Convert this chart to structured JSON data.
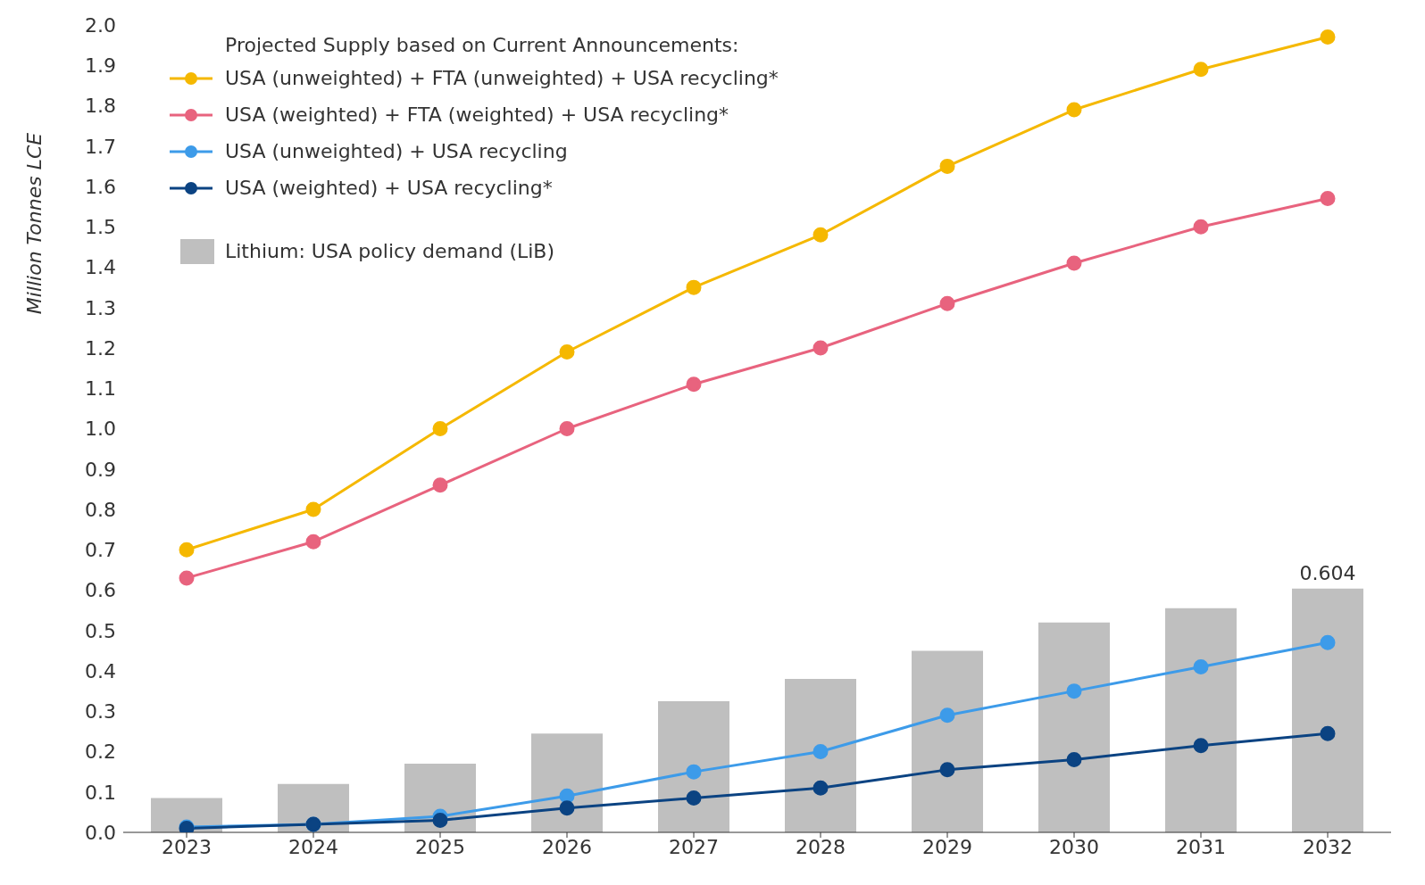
{
  "chart_data": {
    "type": "line",
    "ylabel": "Million Tonnes LCE",
    "legend_title": "Projected Supply based on Current Announcements:",
    "categories": [
      "2023",
      "2024",
      "2025",
      "2026",
      "2027",
      "2028",
      "2029",
      "2030",
      "2031",
      "2032"
    ],
    "series": [
      {
        "type": "bar",
        "name": "Lithium: USA policy demand (LiB)",
        "color": "#bfbfbf",
        "values": [
          0.085,
          0.12,
          0.17,
          0.245,
          0.325,
          0.38,
          0.45,
          0.52,
          0.555,
          0.604
        ],
        "value_labels": [
          null,
          null,
          null,
          null,
          null,
          null,
          null,
          null,
          null,
          "0.604"
        ]
      },
      {
        "name": "USA (unweighted) + FTA (unweighted) + USA recycling*",
        "color": "#f5b800",
        "values": [
          0.7,
          0.8,
          1.0,
          1.19,
          1.35,
          1.48,
          1.65,
          1.79,
          1.89,
          1.97
        ]
      },
      {
        "name": "USA (weighted) + FTA (weighted) + USA recycling*",
        "color": "#e8637e",
        "values": [
          0.63,
          0.72,
          0.86,
          1.0,
          1.11,
          1.2,
          1.31,
          1.41,
          1.5,
          1.57
        ]
      },
      {
        "name": "USA (unweighted) + USA recycling",
        "color": "#3d9be9",
        "values": [
          0.013,
          0.02,
          0.04,
          0.09,
          0.15,
          0.2,
          0.29,
          0.35,
          0.41,
          0.47
        ]
      },
      {
        "name": "USA (weighted) + USA recycling*",
        "color": "#0b4382",
        "values": [
          0.01,
          0.02,
          0.03,
          0.06,
          0.085,
          0.11,
          0.155,
          0.18,
          0.215,
          0.245
        ]
      }
    ],
    "ylim": [
      0,
      2.0
    ],
    "yticks": [
      {
        "value": 0,
        "label": "0.0"
      },
      {
        "value": 0.1,
        "label": "0.1"
      },
      {
        "value": 0.2,
        "label": "0.2"
      },
      {
        "value": 0.3,
        "label": "0.3"
      },
      {
        "value": 0.4,
        "label": "0.4"
      },
      {
        "value": 0.5,
        "label": "0.5"
      },
      {
        "value": 0.6,
        "label": "0.6"
      },
      {
        "value": 0.7,
        "label": "0.7"
      },
      {
        "value": 0.8,
        "label": "0.8"
      },
      {
        "value": 0.9,
        "label": "0.9"
      },
      {
        "value": 1.0,
        "label": "1.0"
      },
      {
        "value": 1.1,
        "label": "1.1"
      },
      {
        "value": 1.2,
        "label": "1.2"
      },
      {
        "value": 1.3,
        "label": "1.3"
      },
      {
        "value": 1.4,
        "label": "1.4"
      },
      {
        "value": 1.5,
        "label": "1.5"
      },
      {
        "value": 1.6,
        "label": "1.6"
      },
      {
        "value": 1.7,
        "label": "1.7"
      },
      {
        "value": 1.8,
        "label": "1.8"
      },
      {
        "value": 1.9,
        "label": "1.9"
      },
      {
        "value": 2.0,
        "label": "2.0"
      }
    ],
    "grid": false,
    "legend": "top left",
    "marker": "circle",
    "line_style": "solid"
  }
}
